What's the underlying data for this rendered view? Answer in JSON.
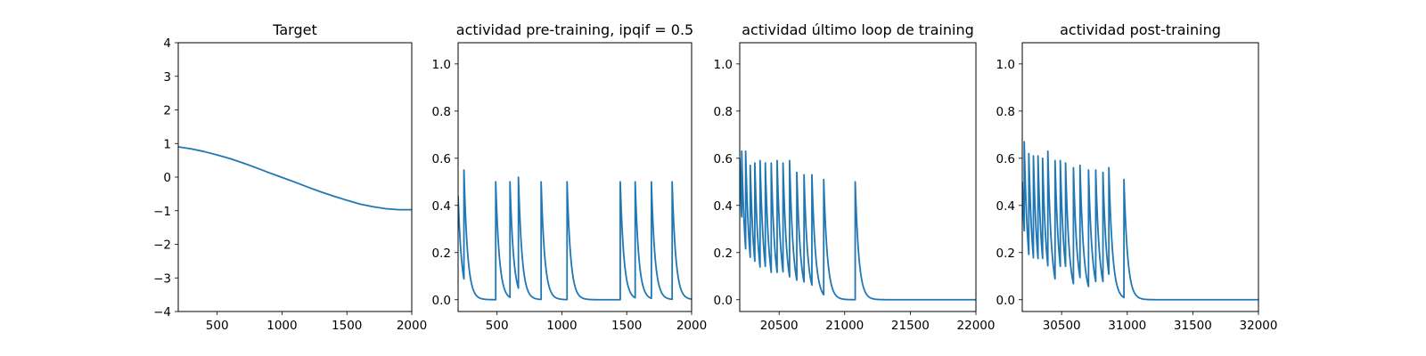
{
  "colors": {
    "series": "#1f77b4"
  },
  "chart_data": [
    {
      "type": "line",
      "title": "Target",
      "xlim": [
        200,
        2000
      ],
      "ylim": [
        -4,
        4
      ],
      "xticks": [
        500,
        1000,
        1500,
        2000
      ],
      "yticks": [
        -4,
        -3,
        -2,
        -1,
        0,
        1,
        2,
        3,
        4
      ],
      "xtick_labels": [
        "500",
        "1000",
        "1500",
        "2000"
      ],
      "ytick_labels": [
        "−4",
        "−3",
        "−2",
        "−1",
        "0",
        "1",
        "2",
        "3",
        "4"
      ],
      "grid": false,
      "curve": {
        "kind": "sampled",
        "x": [
          200,
          300,
          400,
          500,
          600,
          700,
          800,
          900,
          1000,
          1100,
          1200,
          1300,
          1400,
          1500,
          1600,
          1700,
          1800,
          1900,
          2000
        ],
        "y": [
          0.9,
          0.84,
          0.76,
          0.66,
          0.55,
          0.42,
          0.28,
          0.13,
          -0.01,
          -0.15,
          -0.3,
          -0.44,
          -0.57,
          -0.69,
          -0.8,
          -0.88,
          -0.94,
          -0.97,
          -0.97
        ]
      }
    },
    {
      "type": "line",
      "title": "actividad pre-training, ipqif = 0.5",
      "xlim": [
        200,
        2000
      ],
      "ylim": [
        -0.05,
        1.09
      ],
      "xticks": [
        500,
        1000,
        1500,
        2000
      ],
      "yticks": [
        0.0,
        0.2,
        0.4,
        0.6,
        0.8,
        1.0
      ],
      "xtick_labels": [
        "500",
        "1000",
        "1500",
        "2000"
      ],
      "ytick_labels": [
        "0.0",
        "0.2",
        "0.4",
        "0.6",
        "0.8",
        "1.0"
      ],
      "grid": false,
      "curve": {
        "kind": "spikes",
        "x_start": 200,
        "x_end": 2000,
        "y_start": 0.44,
        "tau": 28,
        "spikes": [
          [
            245,
            0.55
          ],
          [
            490,
            0.5
          ],
          [
            600,
            0.5
          ],
          [
            665,
            0.52
          ],
          [
            840,
            0.5
          ],
          [
            1040,
            0.5
          ],
          [
            1450,
            0.5
          ],
          [
            1565,
            0.5
          ],
          [
            1690,
            0.5
          ],
          [
            1850,
            0.5
          ]
        ]
      }
    },
    {
      "type": "line",
      "title": "actividad último loop de training",
      "xlim": [
        20200,
        22000
      ],
      "ylim": [
        -0.05,
        1.09
      ],
      "xticks": [
        20500,
        21000,
        21500,
        22000
      ],
      "yticks": [
        0.0,
        0.2,
        0.4,
        0.6,
        0.8,
        1.0
      ],
      "xtick_labels": [
        "20500",
        "21000",
        "21500",
        "22000"
      ],
      "ytick_labels": [
        "0.0",
        "0.2",
        "0.4",
        "0.6",
        "0.8",
        "1.0"
      ],
      "grid": false,
      "curve": {
        "kind": "spikes",
        "x_start": 20200,
        "x_end": 22000,
        "y_start": 0.6,
        "tau": 28,
        "spikes": [
          [
            20215,
            0.63
          ],
          [
            20245,
            0.63
          ],
          [
            20280,
            0.57
          ],
          [
            20315,
            0.58
          ],
          [
            20355,
            0.59
          ],
          [
            20395,
            0.58
          ],
          [
            20440,
            0.58
          ],
          [
            20485,
            0.59
          ],
          [
            20530,
            0.58
          ],
          [
            20580,
            0.59
          ],
          [
            20635,
            0.54
          ],
          [
            20690,
            0.53
          ],
          [
            20750,
            0.53
          ],
          [
            20840,
            0.51
          ],
          [
            21080,
            0.5
          ]
        ]
      }
    },
    {
      "type": "line",
      "title": "actividad post-training",
      "xlim": [
        30200,
        32000
      ],
      "ylim": [
        -0.05,
        1.09
      ],
      "xticks": [
        30500,
        31000,
        31500,
        32000
      ],
      "yticks": [
        0.0,
        0.2,
        0.4,
        0.6,
        0.8,
        1.0
      ],
      "xtick_labels": [
        "30500",
        "31000",
        "31500",
        "32000"
      ],
      "ytick_labels": [
        "0.0",
        "0.2",
        "0.4",
        "0.6",
        "0.8",
        "1.0"
      ],
      "grid": false,
      "curve": {
        "kind": "spikes",
        "x_start": 30200,
        "x_end": 32000,
        "y_start": 0.5,
        "tau": 28,
        "spikes": [
          [
            30215,
            0.67
          ],
          [
            30250,
            0.62
          ],
          [
            30285,
            0.61
          ],
          [
            30320,
            0.61
          ],
          [
            30355,
            0.6
          ],
          [
            30395,
            0.63
          ],
          [
            30450,
            0.59
          ],
          [
            30490,
            0.59
          ],
          [
            30530,
            0.58
          ],
          [
            30590,
            0.56
          ],
          [
            30640,
            0.57
          ],
          [
            30705,
            0.55
          ],
          [
            30760,
            0.55
          ],
          [
            30815,
            0.54
          ],
          [
            30860,
            0.56
          ],
          [
            30975,
            0.51
          ]
        ]
      }
    }
  ]
}
